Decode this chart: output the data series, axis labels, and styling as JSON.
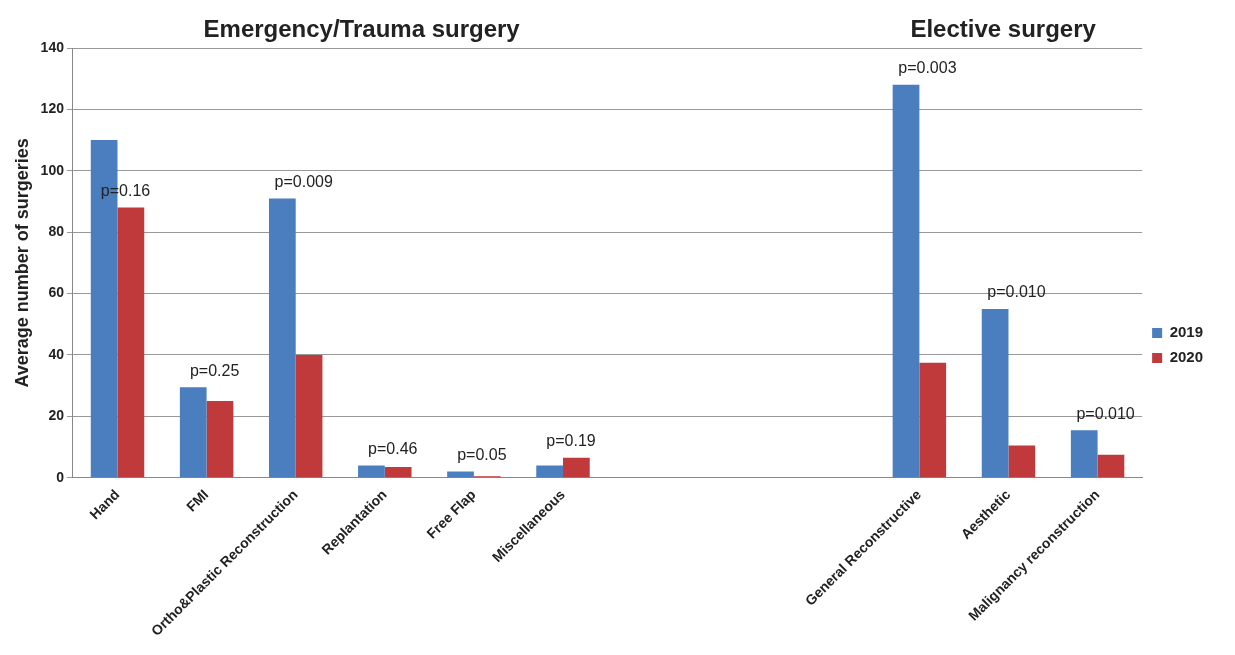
{
  "chart_data": {
    "type": "bar",
    "ylabel": "Average number of surgeries",
    "categories": [
      "Hand",
      "FMI",
      "Ortho&Plastic Reconstruction",
      "Replantation",
      "Free Flap",
      "Miscellaneous",
      null,
      null,
      null,
      "General Reconstructive",
      "Aesthetic",
      "Malignancy reconstruction"
    ],
    "series": [
      {
        "name": "2019",
        "color": "#4a7ebf",
        "values": [
          110,
          29.5,
          91,
          4,
          2,
          4,
          null,
          null,
          null,
          128,
          55,
          15.5
        ]
      },
      {
        "name": "2020",
        "color": "#c0393b",
        "values": [
          88,
          25,
          40,
          3.5,
          0.5,
          6.5,
          null,
          null,
          null,
          37.5,
          10.5,
          7.5
        ]
      }
    ],
    "ylim": [
      0,
      140
    ],
    "yticks": [
      0,
      20,
      40,
      60,
      80,
      100,
      120,
      140
    ],
    "grid": "y",
    "legend": "right",
    "annotations": [
      "Emergency/Trauma surgery",
      "Elective surgery",
      {
        "text": "p=0.16",
        "x": "Hand",
        "y": 88
      },
      {
        "text": "p=0.25",
        "x": "FMI",
        "y": 29.5
      },
      {
        "text": "p=0.009",
        "x": "Ortho&Plastic Reconstruction",
        "y": 91
      },
      {
        "text": "p=0.46",
        "x": "Replantation",
        "y": 4
      },
      {
        "text": "p=0.05",
        "x": "Free Flap",
        "y": 2
      },
      {
        "text": "p=0.19",
        "x": "Miscellaneous",
        "y": 6.5
      },
      {
        "text": "p=0.003",
        "x": "General Reconstructive",
        "y": 128
      },
      {
        "text": "p=0.010",
        "x": "Aesthetic",
        "y": 55
      },
      {
        "text": "p=0.010",
        "x": "Malignancy reconstruction",
        "y": 15.5
      }
    ]
  }
}
